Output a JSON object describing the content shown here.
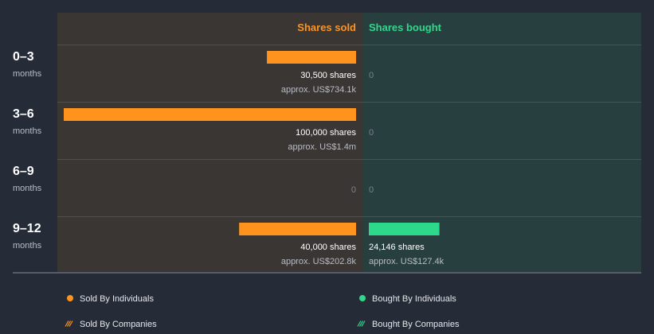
{
  "chart_data": {
    "type": "bar",
    "headers": {
      "sold": "Shares sold",
      "bought": "Shares bought"
    },
    "unit_label": "months",
    "periods": [
      {
        "label": "0–3",
        "sold": 30500,
        "sold_label": "30,500 shares",
        "sold_approx": "approx. US$734.1k",
        "bought": 0,
        "bought_label": "0",
        "bought_approx": ""
      },
      {
        "label": "3–6",
        "sold": 100000,
        "sold_label": "100,000 shares",
        "sold_approx": "approx. US$1.4m",
        "bought": 0,
        "bought_label": "0",
        "bought_approx": ""
      },
      {
        "label": "6–9",
        "sold": 0,
        "sold_label": "0",
        "sold_approx": "",
        "bought": 0,
        "bought_label": "0",
        "bought_approx": ""
      },
      {
        "label": "9–12",
        "sold": 40000,
        "sold_label": "40,000 shares",
        "sold_approx": "approx. US$202.8k",
        "bought": 24146,
        "bought_label": "24,146 shares",
        "bought_approx": "approx. US$127.4k"
      }
    ],
    "legend": [
      {
        "label": "Sold By Individuals",
        "marker": "dot",
        "color": "#ff931e"
      },
      {
        "label": "Bought By Individuals",
        "marker": "dot",
        "color": "#2ed88a"
      },
      {
        "label": "Sold By Companies",
        "marker": "hatch",
        "color": "#ff931e"
      },
      {
        "label": "Bought By Companies",
        "marker": "hatch",
        "color": "#2ed88a"
      }
    ],
    "colors": {
      "background": "#262b38",
      "sold_panel": "#3a3634",
      "bought_panel": "#27403f",
      "sold_bar": "#ff931e",
      "bought_bar": "#2ed88a"
    }
  }
}
